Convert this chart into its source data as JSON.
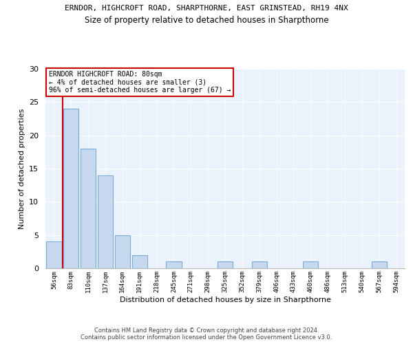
{
  "title_line1": "ERNDOR, HIGHCROFT ROAD, SHARPTHORNE, EAST GRINSTEAD, RH19 4NX",
  "title_line2": "Size of property relative to detached houses in Sharpthorne",
  "xlabel": "Distribution of detached houses by size in Sharpthorne",
  "ylabel": "Number of detached properties",
  "categories": [
    "56sqm",
    "83sqm",
    "110sqm",
    "137sqm",
    "164sqm",
    "191sqm",
    "218sqm",
    "245sqm",
    "271sqm",
    "298sqm",
    "325sqm",
    "352sqm",
    "379sqm",
    "406sqm",
    "433sqm",
    "460sqm",
    "486sqm",
    "513sqm",
    "540sqm",
    "567sqm",
    "594sqm"
  ],
  "values": [
    4,
    24,
    18,
    14,
    5,
    2,
    0,
    1,
    0,
    0,
    1,
    0,
    1,
    0,
    0,
    1,
    0,
    0,
    0,
    1,
    0
  ],
  "bar_color": "#c5d8ed",
  "bar_edge_color": "#7aadd4",
  "highlight_line_color": "#cc0000",
  "annotation_title": "ERNDOR HIGHCROFT ROAD: 80sqm",
  "annotation_line2": "← 4% of detached houses are smaller (3)",
  "annotation_line3": "96% of semi-detached houses are larger (67) →",
  "annotation_box_color": "#ffffff",
  "annotation_box_edge": "#cc0000",
  "ylim": [
    0,
    30
  ],
  "yticks": [
    0,
    5,
    10,
    15,
    20,
    25,
    30
  ],
  "background_color": "#eaf2fb",
  "footer_line1": "Contains HM Land Registry data © Crown copyright and database right 2024.",
  "footer_line2": "Contains public sector information licensed under the Open Government Licence v3.0."
}
